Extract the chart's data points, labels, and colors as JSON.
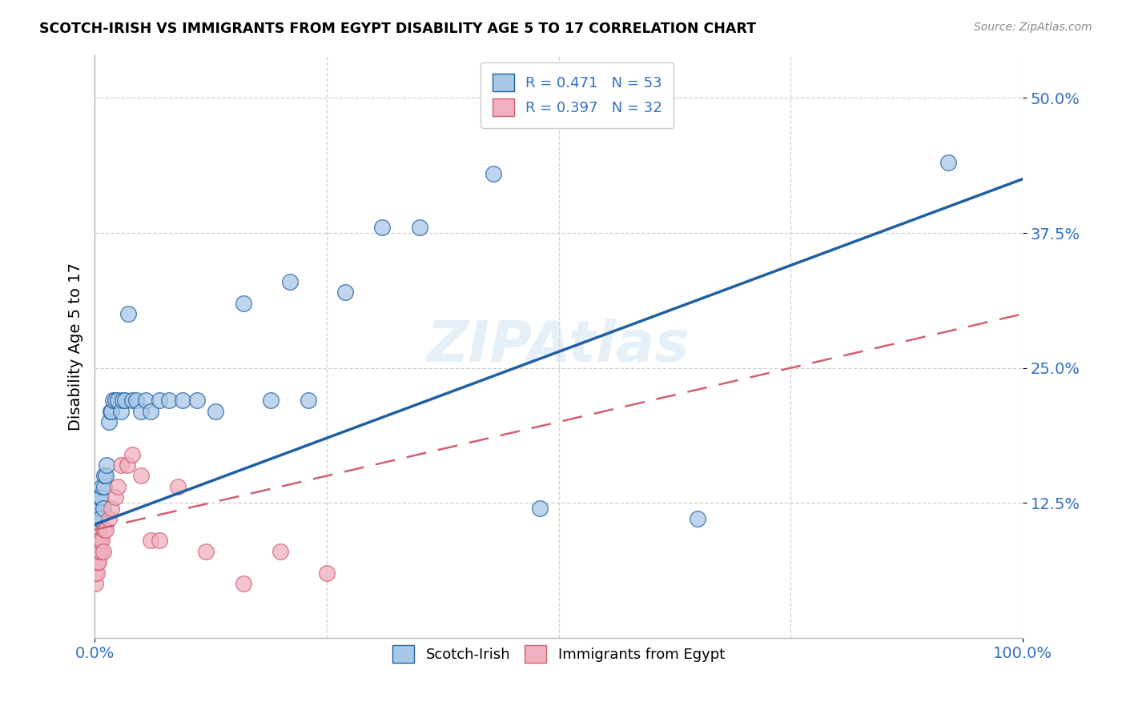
{
  "title": "SCOTCH-IRISH VS IMMIGRANTS FROM EGYPT DISABILITY AGE 5 TO 17 CORRELATION CHART",
  "source": "Source: ZipAtlas.com",
  "ylabel": "Disability Age 5 to 17",
  "r_blue": 0.471,
  "n_blue": 53,
  "r_pink": 0.397,
  "n_pink": 32,
  "blue_color": "#a8c8e8",
  "blue_line_color": "#2060a0",
  "pink_color": "#f0b0c0",
  "pink_line_color": "#d06070",
  "watermark": "ZIPAtlas",
  "blue_scatter_x": [
    0.001,
    0.001,
    0.001,
    0.002,
    0.002,
    0.002,
    0.003,
    0.003,
    0.004,
    0.004,
    0.005,
    0.005,
    0.005,
    0.006,
    0.006,
    0.007,
    0.008,
    0.009,
    0.01,
    0.01,
    0.012,
    0.013,
    0.015,
    0.017,
    0.018,
    0.02,
    0.022,
    0.025,
    0.028,
    0.03,
    0.033,
    0.036,
    0.04,
    0.045,
    0.05,
    0.055,
    0.06,
    0.07,
    0.08,
    0.095,
    0.11,
    0.13,
    0.16,
    0.19,
    0.21,
    0.23,
    0.27,
    0.31,
    0.35,
    0.43,
    0.48,
    0.65,
    0.92
  ],
  "blue_scatter_y": [
    0.08,
    0.09,
    0.1,
    0.09,
    0.1,
    0.11,
    0.1,
    0.11,
    0.1,
    0.12,
    0.11,
    0.12,
    0.13,
    0.11,
    0.13,
    0.13,
    0.14,
    0.12,
    0.14,
    0.15,
    0.15,
    0.16,
    0.2,
    0.21,
    0.21,
    0.22,
    0.22,
    0.22,
    0.21,
    0.22,
    0.22,
    0.3,
    0.22,
    0.22,
    0.21,
    0.22,
    0.21,
    0.22,
    0.22,
    0.22,
    0.22,
    0.21,
    0.31,
    0.22,
    0.33,
    0.22,
    0.32,
    0.38,
    0.38,
    0.43,
    0.12,
    0.11,
    0.44
  ],
  "pink_scatter_x": [
    0.001,
    0.001,
    0.001,
    0.002,
    0.002,
    0.003,
    0.003,
    0.004,
    0.004,
    0.005,
    0.005,
    0.006,
    0.007,
    0.008,
    0.009,
    0.01,
    0.012,
    0.015,
    0.018,
    0.022,
    0.025,
    0.028,
    0.035,
    0.04,
    0.05,
    0.06,
    0.07,
    0.09,
    0.12,
    0.16,
    0.2,
    0.25
  ],
  "pink_scatter_y": [
    0.05,
    0.06,
    0.07,
    0.06,
    0.07,
    0.07,
    0.08,
    0.07,
    0.09,
    0.08,
    0.09,
    0.09,
    0.08,
    0.09,
    0.08,
    0.1,
    0.1,
    0.11,
    0.12,
    0.13,
    0.14,
    0.16,
    0.16,
    0.17,
    0.15,
    0.09,
    0.09,
    0.14,
    0.08,
    0.05,
    0.08,
    0.06
  ],
  "xlim": [
    0.0,
    1.0
  ],
  "ylim": [
    0.0,
    0.54
  ],
  "xtick_positions": [
    0.0,
    1.0
  ],
  "xtick_labels": [
    "0.0%",
    "100.0%"
  ],
  "ytick_positions": [
    0.125,
    0.25,
    0.375,
    0.5
  ],
  "ytick_labels": [
    "12.5%",
    "25.0%",
    "37.5%",
    "50.0%"
  ],
  "legend_labels": [
    "Scotch-Irish",
    "Immigrants from Egypt"
  ],
  "tick_color": "#3070c0",
  "grid_color": "#d0d0d0"
}
